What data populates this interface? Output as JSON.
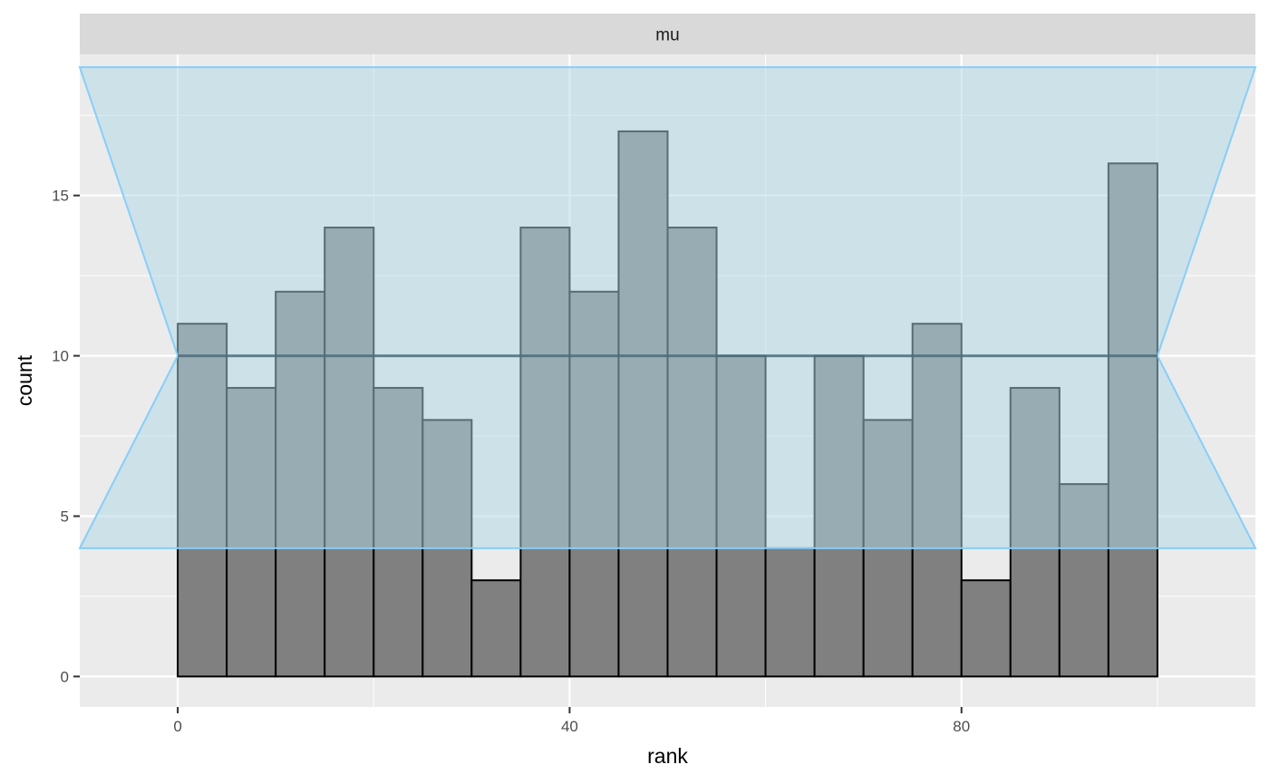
{
  "chart_data": {
    "type": "bar",
    "facet_label": "mu",
    "xlabel": "rank",
    "ylabel": "count",
    "xlim": [
      -10,
      110
    ],
    "ylim": [
      -0.95,
      19.4
    ],
    "x_ticks": [
      0,
      40,
      80
    ],
    "y_ticks": [
      0,
      5,
      10,
      15
    ],
    "bin_width": 5,
    "bins_start": [
      0,
      5,
      10,
      15,
      20,
      25,
      30,
      35,
      40,
      45,
      50,
      55,
      60,
      65,
      70,
      75,
      80,
      85,
      90,
      95
    ],
    "values": [
      11,
      9,
      12,
      14,
      9,
      8,
      3,
      14,
      12,
      17,
      14,
      10,
      4,
      10,
      8,
      11,
      3,
      9,
      6,
      16
    ],
    "expected_count": 10,
    "band": {
      "outer_x": [
        -10,
        110
      ],
      "inner_x": [
        0,
        100
      ],
      "lower": 4,
      "upper": 19
    },
    "grid": true,
    "colors": {
      "panel": "#ebebeb",
      "strip": "#d9d9d9",
      "grid": "#ffffff",
      "bar_fill": "#808080",
      "bar_stroke": "#000000",
      "band_fill": "#add8e6",
      "band_stroke": "#87cefa",
      "mean_line": "#4d6b7a"
    }
  }
}
